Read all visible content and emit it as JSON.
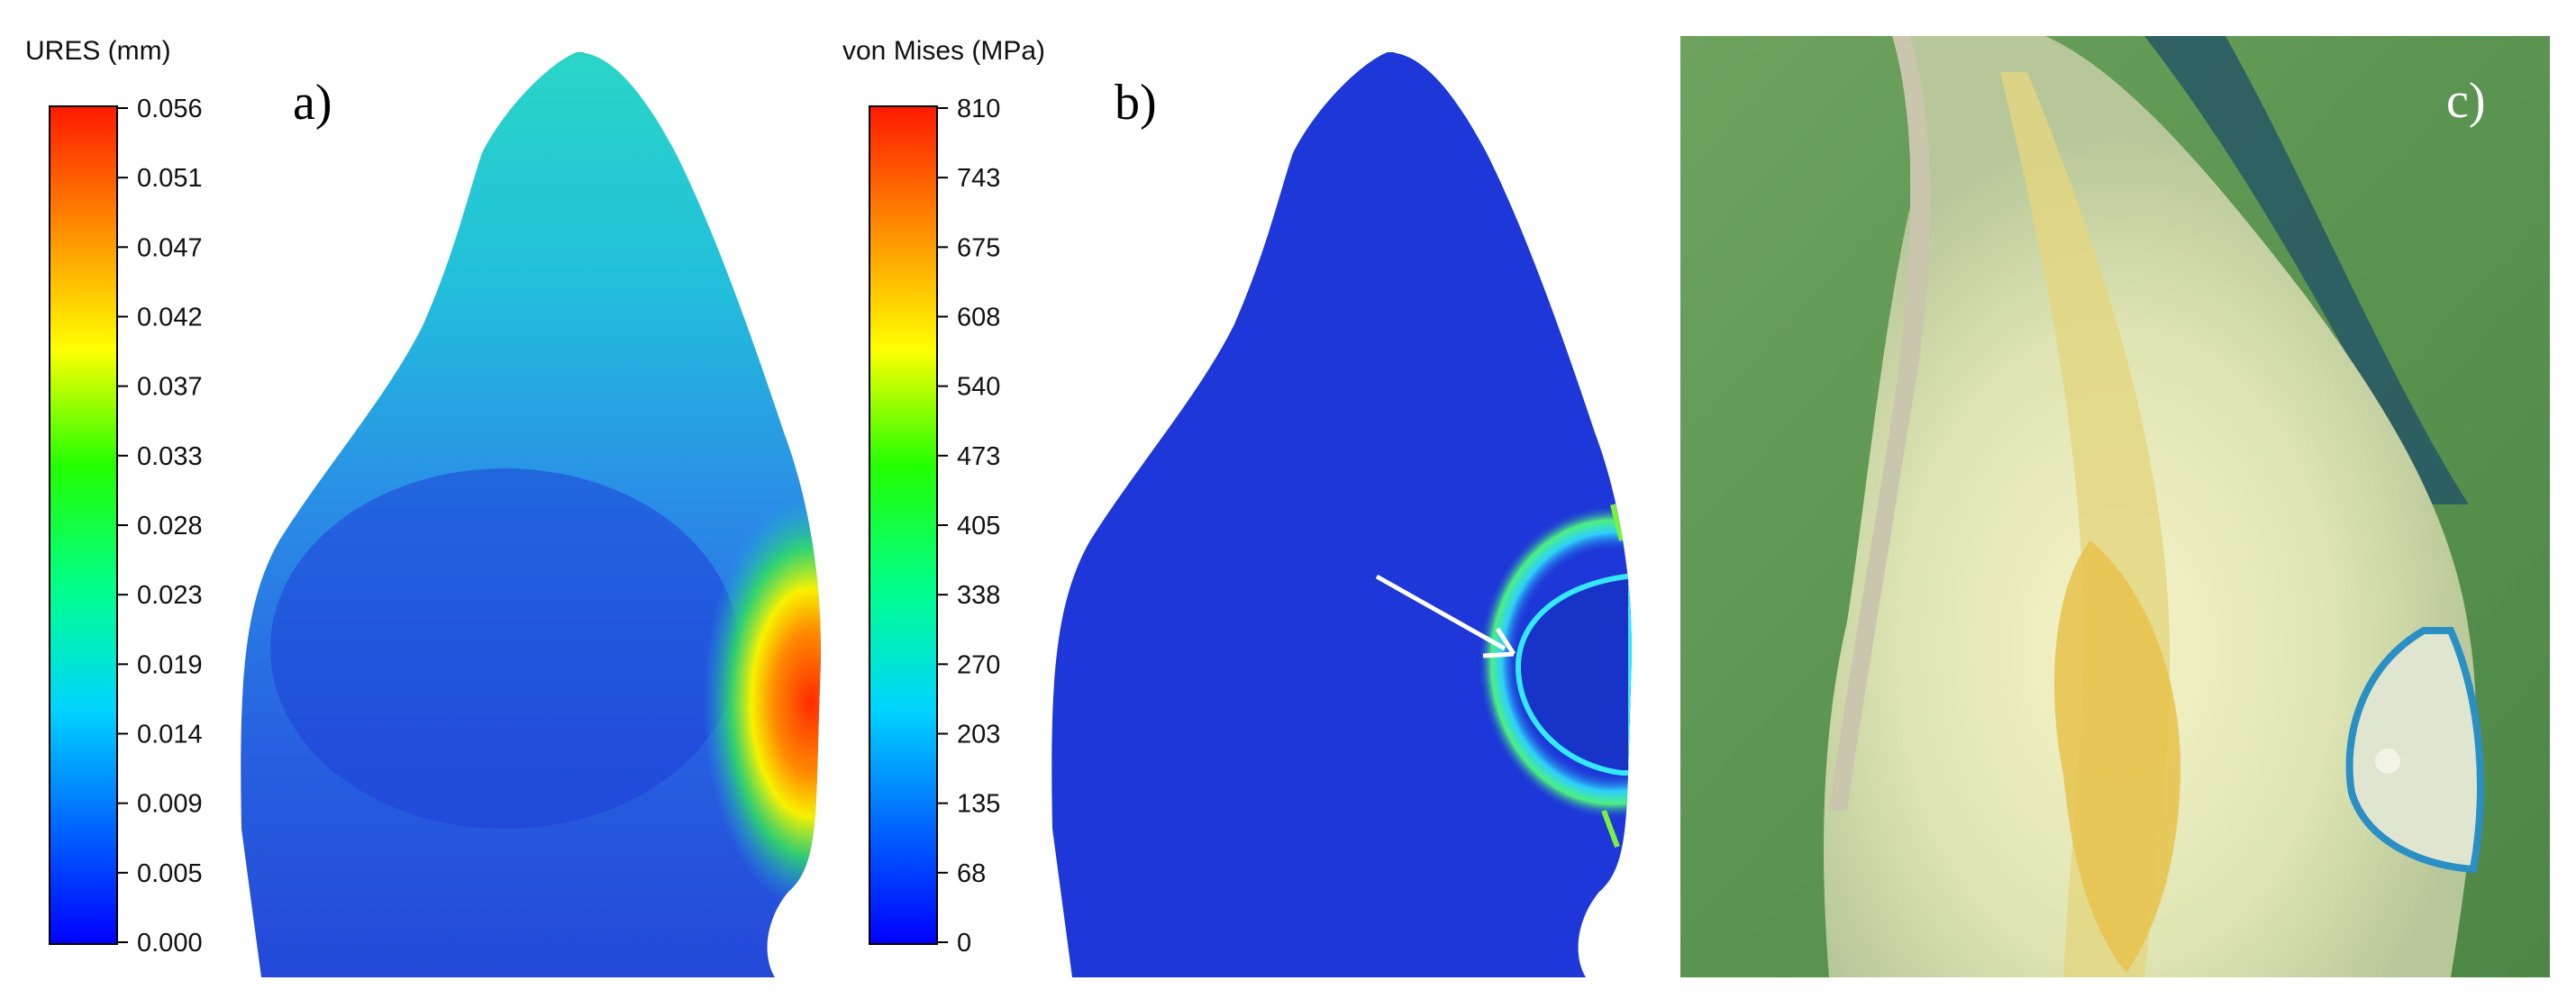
{
  "panel_a": {
    "letter": "a)",
    "legend": {
      "title": "URES (mm)",
      "ticks": [
        "0.056",
        "0.051",
        "0.047",
        "0.042",
        "0.037",
        "0.033",
        "0.028",
        "0.023",
        "0.019",
        "0.014",
        "0.009",
        "0.005",
        "0.000"
      ]
    }
  },
  "panel_b": {
    "letter": "b)",
    "legend": {
      "title": "von Mises (MPa)",
      "ticks": [
        "810",
        "743",
        "675",
        "608",
        "540",
        "473",
        "405",
        "338",
        "270",
        "203",
        "135",
        "68",
        "0"
      ]
    }
  },
  "panel_c": {
    "letter": "c)"
  },
  "colors": {
    "colormap": [
      "#0000ff",
      "#0070ff",
      "#00d8ff",
      "#00ff80",
      "#60ff00",
      "#ffff00",
      "#ff9000",
      "#ff0000"
    ],
    "tooth_fill_a": "#2f8fe8",
    "tooth_fill_b": "#1c36d8",
    "photo_background": "#5f9650",
    "arrow": "#ffffff"
  }
}
